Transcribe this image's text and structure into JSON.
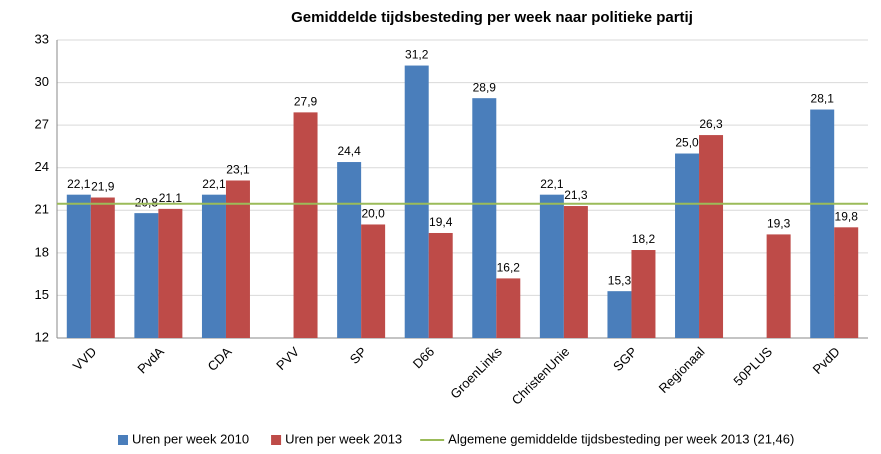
{
  "chart_data": {
    "type": "bar",
    "title": "Gemiddelde tijdsbesteding per week naar politieke partij",
    "categories": [
      "VVD",
      "PvdA",
      "CDA",
      "PVV",
      "SP",
      "D66",
      "GroenLinks",
      "ChristenUnie",
      "SGP",
      "Regionaal",
      "50PLUS",
      "PvdD"
    ],
    "series": [
      {
        "name": "Uren per week 2010",
        "color": "#4a7ebb",
        "values": [
          22.1,
          20.8,
          22.1,
          null,
          24.4,
          31.2,
          28.9,
          22.1,
          15.3,
          25.0,
          null,
          28.1
        ],
        "value_labels": [
          "22,1",
          "20,8",
          "22,1",
          null,
          "24,4",
          "31,2",
          "28,9",
          "22,1",
          "15,3",
          "25,0",
          null,
          "28,1"
        ]
      },
      {
        "name": "Uren per week 2013",
        "color": "#be4b48",
        "values": [
          21.9,
          21.1,
          23.1,
          27.9,
          20.0,
          19.4,
          16.2,
          21.3,
          18.2,
          26.3,
          19.3,
          19.8
        ],
        "value_labels": [
          "21,9",
          "21,1",
          "23,1",
          "27,9",
          "20,0",
          "19,4",
          "16,2",
          "21,3",
          "18,2",
          "26,3",
          "19,3",
          "19,8"
        ]
      }
    ],
    "reference_line": {
      "name": "Algemene gemiddelde tijdsbesteding per week 2013 (21,46)",
      "value": 21.46,
      "color": "#9bbb59"
    },
    "ylim": [
      12,
      33
    ],
    "yticks": [
      12,
      15,
      18,
      21,
      24,
      27,
      30,
      33
    ],
    "grid": true,
    "legend": "bottom"
  }
}
